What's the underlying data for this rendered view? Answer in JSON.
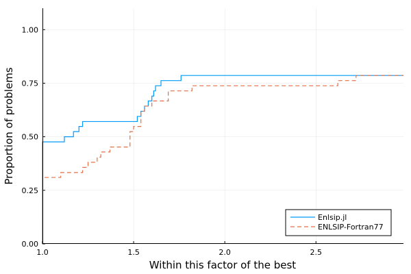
{
  "chart_data": {
    "type": "line",
    "title": "",
    "xlabel": "Within this factor of the best",
    "ylabel": "Proportion of problems",
    "xlim": [
      1.0,
      2.98
    ],
    "ylim": [
      0.0,
      1.1
    ],
    "xticks": [
      1.0,
      1.5,
      2.0,
      2.5
    ],
    "xtick_labels": [
      "1.0",
      "1.5",
      "2.0",
      "2.5"
    ],
    "yticks": [
      0.0,
      0.25,
      0.5,
      0.75,
      1.0
    ],
    "ytick_labels": [
      "0.00",
      "0.25",
      "0.50",
      "0.75",
      "1.00"
    ],
    "grid": true,
    "legend_position": "bottom-right",
    "step": "post",
    "series": [
      {
        "name": "Enlsip.jl",
        "color": "#009AFA",
        "dash": "solid",
        "x": [
          1.0,
          1.0,
          1.12,
          1.17,
          1.2,
          1.22,
          1.52,
          1.54,
          1.56,
          1.58,
          1.6,
          1.61,
          1.62,
          1.65,
          1.76,
          2.72,
          2.98
        ],
        "y": [
          0.0,
          0.476,
          0.5,
          0.524,
          0.548,
          0.571,
          0.595,
          0.619,
          0.643,
          0.667,
          0.69,
          0.714,
          0.738,
          0.762,
          0.786,
          0.786,
          0.786
        ]
      },
      {
        "name": "ENLSIP-Fortran77",
        "color": "#E26F46",
        "dash": "dashed",
        "x": [
          1.0,
          1.0,
          1.1,
          1.22,
          1.25,
          1.3,
          1.32,
          1.37,
          1.48,
          1.5,
          1.54,
          1.56,
          1.6,
          1.69,
          1.82,
          2.62,
          2.72,
          2.98
        ],
        "y": [
          0.0,
          0.31,
          0.333,
          0.357,
          0.381,
          0.405,
          0.429,
          0.452,
          0.524,
          0.548,
          0.619,
          0.643,
          0.667,
          0.714,
          0.738,
          0.762,
          0.786,
          0.786
        ]
      }
    ]
  }
}
